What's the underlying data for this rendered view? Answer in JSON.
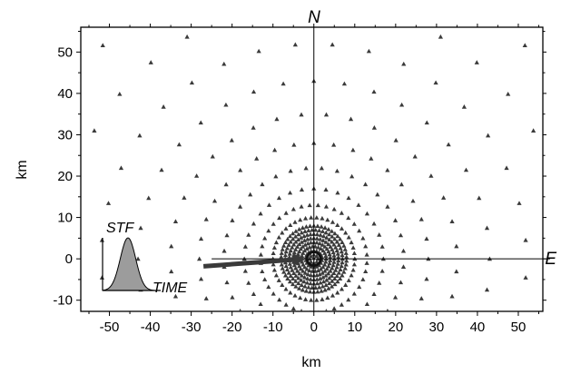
{
  "chart_data": {
    "type": "scatter",
    "title": "",
    "xlabel": "km",
    "ylabel": "km",
    "xlim": [
      -57,
      56
    ],
    "ylim": [
      -12.7,
      56
    ],
    "xticks": [
      -50,
      -40,
      -30,
      -20,
      -10,
      0,
      10,
      20,
      30,
      40,
      50
    ],
    "yticks": [
      -10,
      0,
      10,
      20,
      30,
      40,
      50
    ],
    "north_label": "N",
    "east_label": "E",
    "stf_label": "STF",
    "time_label": "TIME",
    "marker": "triangle",
    "station_color": "#3a3a3a",
    "arrow_color": "#3a3a3a",
    "stf_fill": "#9c9c9c",
    "rupture_arrow": {
      "from": [
        -27,
        -1.8
      ],
      "to": [
        -2,
        0
      ]
    },
    "source": [
      0,
      0
    ],
    "station_rings": [
      {
        "radius": 1,
        "count": 8
      },
      {
        "radius": 2,
        "count": 18
      },
      {
        "radius": 3,
        "count": 26
      },
      {
        "radius": 4,
        "count": 34
      },
      {
        "radius": 5,
        "count": 40
      },
      {
        "radius": 6,
        "count": 46
      },
      {
        "radius": 7,
        "count": 50
      },
      {
        "radius": 8,
        "count": 54
      },
      {
        "radius": 10,
        "count": 46
      },
      {
        "radius": 13,
        "count": 40
      },
      {
        "radius": 17,
        "count": 36
      },
      {
        "radius": 22,
        "count": 36
      },
      {
        "radius": 28,
        "count": 36
      },
      {
        "radius": 35,
        "count": 36
      },
      {
        "radius": 43,
        "count": 36
      },
      {
        "radius": 52,
        "count": 36
      },
      {
        "radius": 62,
        "count": 36
      },
      {
        "radius": 73,
        "count": 36
      }
    ]
  }
}
